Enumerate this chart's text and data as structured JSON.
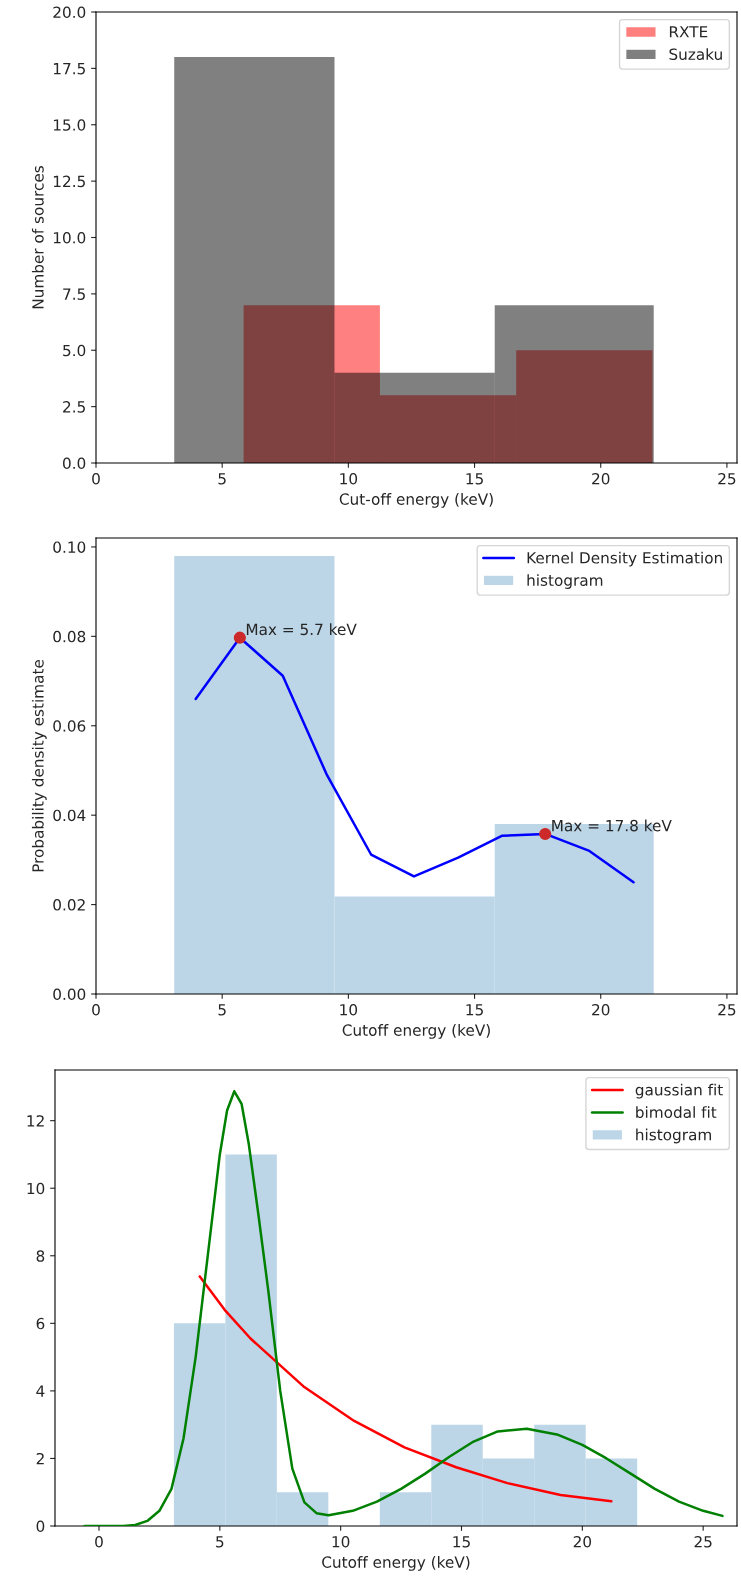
{
  "chart_data": [
    {
      "type": "histogram",
      "xlabel": "Cut-off energy (keV)",
      "ylabel": "Number of sources",
      "xlim": [
        0,
        25.4
      ],
      "xticks": [
        0,
        5,
        10,
        15,
        20,
        25
      ],
      "ylim": [
        0,
        20
      ],
      "yticks": [
        {
          "value": 0,
          "label": "0.0"
        },
        {
          "value": 2.5,
          "label": "2.5"
        },
        {
          "value": 5,
          "label": "5.0"
        },
        {
          "value": 7.5,
          "label": "7.5"
        },
        {
          "value": 10,
          "label": "10.0"
        },
        {
          "value": 12.5,
          "label": "12.5"
        },
        {
          "value": 15,
          "label": "15.0"
        },
        {
          "value": 17.5,
          "label": "17.5"
        },
        {
          "value": 20,
          "label": "20.0"
        }
      ],
      "legend": "top right",
      "bins": [
        3.1,
        9.45,
        15.8,
        22.1
      ],
      "series": [
        {
          "name": "RXTE",
          "color": "#ff8080",
          "bins": [
            5.85,
            11.25,
            16.65,
            22.05
          ],
          "values": [
            7,
            3,
            5
          ]
        },
        {
          "name": "Suzaku",
          "color": "#808080",
          "values": [
            18,
            4,
            7
          ]
        }
      ]
    },
    {
      "type": "histogram",
      "xlabel": "Cutoff energy (keV)",
      "ylabel": "Probability density estimate",
      "xlim": [
        0,
        25.4
      ],
      "xticks": [
        0,
        5,
        10,
        15,
        20,
        25
      ],
      "bins": [
        3.1,
        9.45,
        15.8,
        22.1
      ],
      "ylim": [
        0,
        0.102
      ],
      "yticks": [
        {
          "value": 0,
          "label": "0.00"
        },
        {
          "value": 0.02,
          "label": "0.02"
        },
        {
          "value": 0.04,
          "label": "0.04"
        },
        {
          "value": 0.06,
          "label": "0.06"
        },
        {
          "value": 0.08,
          "label": "0.08"
        },
        {
          "value": 0.1,
          "label": "0.10"
        }
      ],
      "legend": "top right",
      "series": [
        {
          "name": "Kernel Density Estimation",
          "type": "line",
          "color": "#0000ff",
          "x": [
            3.95,
            5.7,
            7.4,
            9.15,
            10.9,
            12.6,
            14.35,
            16.1,
            17.8,
            19.55,
            21.3
          ],
          "values": [
            0.066,
            0.0797,
            0.0712,
            0.049,
            0.0312,
            0.0263,
            0.0305,
            0.0354,
            0.0358,
            0.032,
            0.025
          ]
        },
        {
          "name": "histogram",
          "color": "#bcd6e8",
          "values": [
            0.098,
            0.0218,
            0.038
          ]
        },
        {
          "type": "scatter",
          "color": "#cc2a2a",
          "marker": "circle",
          "x": [
            5.7,
            17.8
          ],
          "values": [
            0.0797,
            0.0358
          ]
        }
      ],
      "annotations": [
        {
          "text": "Max = 5.7 keV",
          "x": 5.7,
          "y": 0.0797
        },
        {
          "text": "Max = 17.8 keV",
          "x": 17.8,
          "y": 0.0358
        }
      ]
    },
    {
      "type": "histogram",
      "xlabel": "Cutoff energy (keV)",
      "xlim": [
        -1.82,
        26.4
      ],
      "xticks": [
        0,
        5,
        10,
        15,
        20,
        25
      ],
      "bins": [
        3.1,
        5.23,
        7.36,
        9.49,
        11.62,
        13.75,
        15.88,
        18.01,
        20.14,
        22.27
      ],
      "ylim": [
        0,
        13.5
      ],
      "yticks": [
        0,
        2,
        4,
        6,
        8,
        10,
        12
      ],
      "legend": "top right",
      "series": [
        {
          "name": "gaussian fit",
          "type": "line",
          "color": "#ff0000",
          "x": [
            4.17,
            5.2,
            6.27,
            8.45,
            10.56,
            12.64,
            14.78,
            16.9,
            19.1,
            21.2
          ],
          "values": [
            7.39,
            6.4,
            5.55,
            4.14,
            3.11,
            2.33,
            1.74,
            1.27,
            0.92,
            0.73
          ]
        },
        {
          "name": "bimodal fit",
          "type": "line",
          "color": "#008000",
          "x": [
            -0.6,
            1.0,
            1.5,
            2.0,
            2.5,
            3.0,
            3.5,
            4.0,
            4.5,
            5.0,
            5.3,
            5.6,
            5.9,
            6.2,
            6.6,
            7.0,
            7.5,
            8.0,
            8.5,
            9.0,
            9.5,
            10.5,
            11.5,
            12.5,
            13.5,
            14.5,
            15.5,
            16.5,
            17.7,
            19.0,
            20.0,
            21.0,
            22.0,
            23.0,
            24.0,
            25.0,
            25.8
          ],
          "values": [
            0,
            0,
            0.03,
            0.15,
            0.45,
            1.1,
            2.6,
            5.0,
            8.0,
            11.0,
            12.3,
            12.87,
            12.5,
            11.3,
            9.2,
            7.0,
            4.0,
            1.7,
            0.7,
            0.38,
            0.32,
            0.45,
            0.72,
            1.1,
            1.55,
            2.05,
            2.5,
            2.8,
            2.88,
            2.7,
            2.4,
            2.0,
            1.55,
            1.1,
            0.72,
            0.45,
            0.3
          ]
        },
        {
          "name": "histogram",
          "color": "#bcd6e8",
          "values": [
            6,
            11,
            1,
            0,
            1,
            3,
            2,
            3,
            2
          ]
        }
      ]
    }
  ]
}
